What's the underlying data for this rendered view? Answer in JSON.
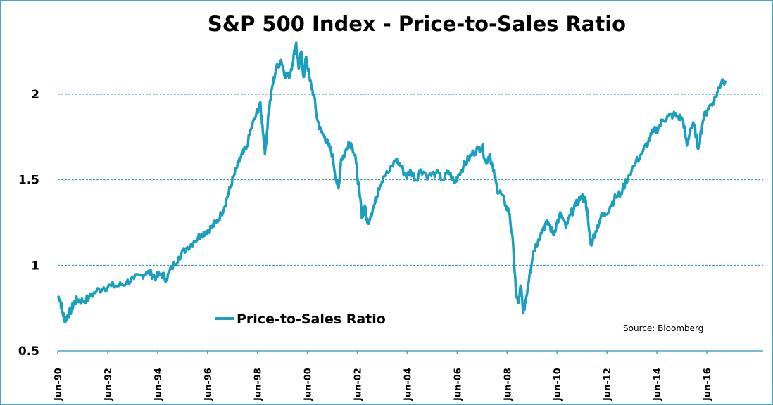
{
  "chart_data": {
    "type": "line",
    "title": "S&P 500 Index - Price-to-Sales Ratio",
    "xlabel": "",
    "ylabel": "",
    "ylim": [
      0.5,
      2.35
    ],
    "yticks": [
      0.5,
      1,
      1.5,
      2
    ],
    "ytick_labels": [
      "0.5",
      "1",
      "1.5",
      "2"
    ],
    "xlim_years": [
      1990.45,
      2017.2
    ],
    "xticks_years": [
      1990.45,
      1992.45,
      1994.45,
      1996.45,
      1998.45,
      2000.45,
      2002.45,
      2004.45,
      2006.45,
      2008.45,
      2010.45,
      2012.45,
      2014.45,
      2016.45
    ],
    "xtick_labels": [
      "Jun-90",
      "Jun-92",
      "Jun-94",
      "Jun-96",
      "Jun-98",
      "Jun-00",
      "Jun-02",
      "Jun-04",
      "Jun-06",
      "Jun-08",
      "Jun-10",
      "Jun-12",
      "Jun-14",
      "Jun-16"
    ],
    "grid": "horizontal-dashed",
    "legend": {
      "position": "bottom-left",
      "entries": [
        "Price-to-Sales Ratio"
      ]
    },
    "annotation": "Source: Bloomberg",
    "series": [
      {
        "name": "Price-to-Sales Ratio",
        "color": "#1a9fbd",
        "x": [
          1990.45,
          1990.55,
          1990.65,
          1990.75,
          1990.85,
          1991.0,
          1991.1,
          1991.25,
          1991.45,
          1991.7,
          1992.0,
          1992.3,
          1992.6,
          1992.9,
          1993.2,
          1993.5,
          1993.8,
          1994.0,
          1994.2,
          1994.4,
          1994.6,
          1994.8,
          1995.0,
          1995.3,
          1995.6,
          1995.9,
          1996.2,
          1996.4,
          1996.6,
          1996.8,
          1997.0,
          1997.2,
          1997.35,
          1997.5,
          1997.7,
          1997.85,
          1998.0,
          1998.2,
          1998.4,
          1998.55,
          1998.65,
          1998.75,
          1998.9,
          1999.05,
          1999.2,
          1999.4,
          1999.55,
          1999.7,
          1999.85,
          2000.0,
          2000.1,
          2000.2,
          2000.3,
          2000.4,
          2000.55,
          2000.7,
          2000.85,
          2001.0,
          2001.15,
          2001.3,
          2001.45,
          2001.6,
          2001.7,
          2001.8,
          2001.95,
          2002.1,
          2002.25,
          2002.4,
          2002.55,
          2002.65,
          2002.75,
          2002.85,
          2003.0,
          2003.15,
          2003.3,
          2003.5,
          2003.75,
          2004.0,
          2004.2,
          2004.4,
          2004.6,
          2004.8,
          2005.0,
          2005.3,
          2005.6,
          2005.9,
          2006.1,
          2006.35,
          2006.5,
          2006.7,
          2006.9,
          2007.1,
          2007.3,
          2007.45,
          2007.6,
          2007.75,
          2007.9,
          2008.05,
          2008.2,
          2008.4,
          2008.55,
          2008.7,
          2008.8,
          2008.9,
          2009.0,
          2009.1,
          2009.2,
          2009.35,
          2009.5,
          2009.7,
          2009.9,
          2010.1,
          2010.3,
          2010.45,
          2010.6,
          2010.8,
          2011.0,
          2011.2,
          2011.4,
          2011.6,
          2011.7,
          2011.8,
          2012.0,
          2012.2,
          2012.4,
          2012.6,
          2012.8,
          2013.0,
          2013.3,
          2013.6,
          2013.9,
          2014.1,
          2014.3,
          2014.5,
          2014.7,
          2014.9,
          2015.1,
          2015.3,
          2015.5,
          2015.65,
          2015.8,
          2015.95,
          2016.1,
          2016.3,
          2016.5,
          2016.7,
          2016.9,
          2017.05,
          2017.2
        ],
        "y": [
          0.82,
          0.8,
          0.72,
          0.68,
          0.71,
          0.74,
          0.78,
          0.8,
          0.79,
          0.81,
          0.85,
          0.87,
          0.88,
          0.88,
          0.9,
          0.92,
          0.94,
          0.96,
          0.95,
          0.93,
          0.95,
          0.92,
          0.98,
          1.05,
          1.1,
          1.14,
          1.18,
          1.2,
          1.22,
          1.25,
          1.3,
          1.38,
          1.45,
          1.52,
          1.6,
          1.65,
          1.68,
          1.8,
          1.88,
          1.95,
          1.82,
          1.65,
          1.9,
          2.05,
          2.15,
          2.2,
          2.12,
          2.1,
          2.18,
          2.3,
          2.15,
          2.25,
          2.1,
          2.22,
          2.08,
          2.0,
          1.85,
          1.78,
          1.75,
          1.7,
          1.65,
          1.5,
          1.45,
          1.62,
          1.65,
          1.72,
          1.7,
          1.6,
          1.4,
          1.28,
          1.35,
          1.25,
          1.3,
          1.36,
          1.45,
          1.52,
          1.55,
          1.62,
          1.58,
          1.52,
          1.55,
          1.5,
          1.56,
          1.52,
          1.54,
          1.5,
          1.55,
          1.48,
          1.53,
          1.58,
          1.62,
          1.66,
          1.68,
          1.7,
          1.6,
          1.65,
          1.55,
          1.45,
          1.42,
          1.35,
          1.3,
          1.1,
          0.85,
          0.78,
          0.88,
          0.72,
          0.8,
          0.95,
          1.08,
          1.15,
          1.22,
          1.25,
          1.18,
          1.25,
          1.3,
          1.22,
          1.3,
          1.35,
          1.4,
          1.38,
          1.25,
          1.12,
          1.2,
          1.28,
          1.3,
          1.35,
          1.4,
          1.42,
          1.52,
          1.6,
          1.67,
          1.72,
          1.78,
          1.8,
          1.85,
          1.87,
          1.88,
          1.87,
          1.85,
          1.7,
          1.8,
          1.82,
          1.68,
          1.85,
          1.92,
          1.95,
          2.02,
          2.08,
          2.08
        ]
      }
    ]
  }
}
